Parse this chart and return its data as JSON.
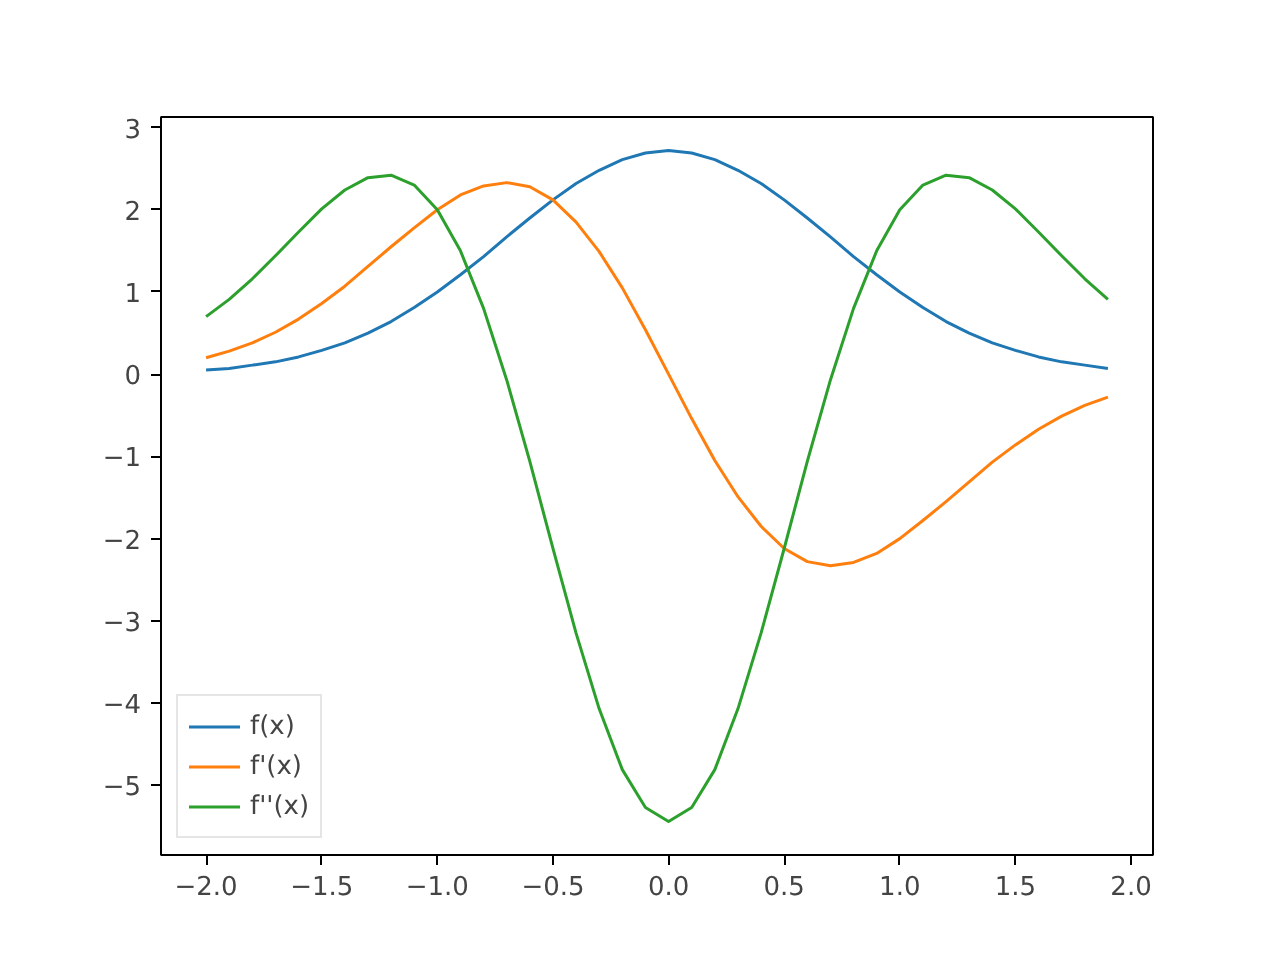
{
  "chart_data": {
    "type": "line",
    "x": [
      -2.0,
      -1.9,
      -1.8,
      -1.7,
      -1.6,
      -1.5,
      -1.4,
      -1.3,
      -1.2,
      -1.1,
      -1.0,
      -0.9,
      -0.8,
      -0.7,
      -0.6,
      -0.5,
      -0.4,
      -0.3,
      -0.2,
      -0.1,
      0.0,
      0.1,
      0.2,
      0.3,
      0.4,
      0.5,
      0.6,
      0.7,
      0.8,
      0.9,
      1.0,
      1.1,
      1.2,
      1.3,
      1.4,
      1.5,
      1.6,
      1.7,
      1.8,
      1.9
    ],
    "series": [
      {
        "name": "f(x)",
        "color": "#1f77b4",
        "values": [
          0.05,
          0.07,
          0.11,
          0.15,
          0.21,
          0.29,
          0.38,
          0.5,
          0.64,
          0.81,
          1.0,
          1.21,
          1.43,
          1.67,
          1.9,
          2.12,
          2.32,
          2.48,
          2.61,
          2.69,
          2.72,
          2.69,
          2.61,
          2.48,
          2.32,
          2.12,
          1.9,
          1.67,
          1.43,
          1.21,
          1.0,
          0.81,
          0.64,
          0.5,
          0.38,
          0.29,
          0.21,
          0.15,
          0.11,
          0.07
        ]
      },
      {
        "name": "f'(x)",
        "color": "#ff7f0e",
        "values": [
          0.2,
          0.28,
          0.38,
          0.51,
          0.67,
          0.86,
          1.07,
          1.31,
          1.55,
          1.78,
          2.0,
          2.18,
          2.29,
          2.33,
          2.28,
          2.12,
          1.85,
          1.49,
          1.05,
          0.54,
          0.0,
          -0.54,
          -1.05,
          -1.49,
          -1.85,
          -2.12,
          -2.28,
          -2.33,
          -2.29,
          -2.18,
          -2.0,
          -1.78,
          -1.55,
          -1.31,
          -1.07,
          -0.86,
          -0.67,
          -0.51,
          -0.38,
          -0.28
        ]
      },
      {
        "name": "f''(x)",
        "color": "#2ca02c",
        "values": [
          0.7,
          0.91,
          1.16,
          1.44,
          1.73,
          2.01,
          2.24,
          2.39,
          2.42,
          2.3,
          2.0,
          1.5,
          0.8,
          -0.07,
          -1.06,
          -2.12,
          -3.15,
          -4.07,
          -4.81,
          -5.27,
          -5.44,
          -5.27,
          -4.81,
          -4.07,
          -3.15,
          -2.12,
          -1.06,
          -0.07,
          0.8,
          1.5,
          2.0,
          2.3,
          2.42,
          2.39,
          2.24,
          2.01,
          1.73,
          1.44,
          1.16,
          0.91
        ]
      }
    ],
    "xlim": [
      -2.195,
      2.095
    ],
    "ylim": [
      -5.848,
      3.128
    ],
    "xticks": [
      {
        "value": -2.0,
        "label": "−2.0"
      },
      {
        "value": -1.5,
        "label": "−1.5"
      },
      {
        "value": -1.0,
        "label": "−1.0"
      },
      {
        "value": -0.5,
        "label": "−0.5"
      },
      {
        "value": 0.0,
        "label": "0.0"
      },
      {
        "value": 0.5,
        "label": "0.5"
      },
      {
        "value": 1.0,
        "label": "1.0"
      },
      {
        "value": 1.5,
        "label": "1.5"
      },
      {
        "value": 2.0,
        "label": "2.0"
      }
    ],
    "yticks": [
      {
        "value": -5,
        "label": "−5"
      },
      {
        "value": -4,
        "label": "−4"
      },
      {
        "value": -3,
        "label": "−3"
      },
      {
        "value": -2,
        "label": "−2"
      },
      {
        "value": -1,
        "label": "−1"
      },
      0,
      1,
      2,
      3
    ],
    "legend": "bottom left",
    "grid": false,
    "line_style": "solid"
  }
}
